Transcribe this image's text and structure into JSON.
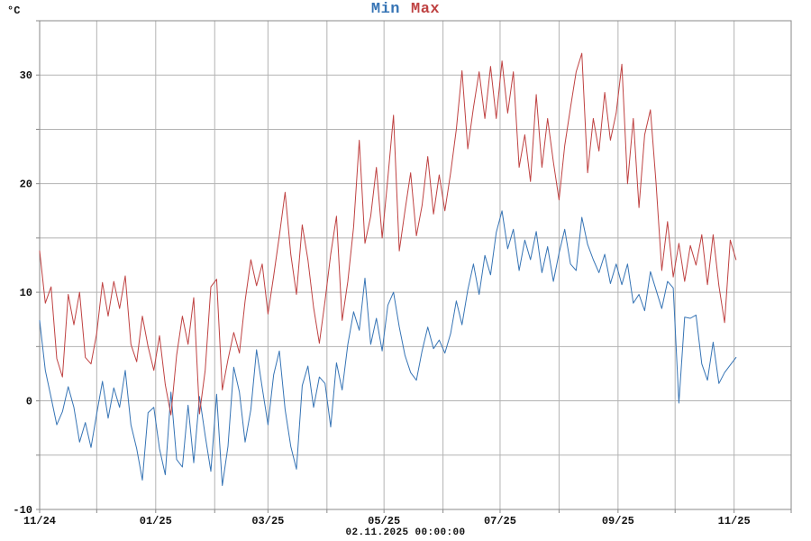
{
  "unit_label": "°C",
  "legend": {
    "min_label": "Min",
    "max_label": "Max"
  },
  "caption": "02.11.2025 00:00:00",
  "colors": {
    "min": "#3674b5",
    "max": "#bf4242",
    "grid": "#b3b3b3",
    "frame": "#8a8a8a",
    "text": "#111111"
  },
  "chart_data": {
    "type": "line",
    "title": "Min Max",
    "ylabel": "°C",
    "xlabel": "",
    "grid": true,
    "legend_position": "top-center",
    "x_unit": "days_from_2024-11-01",
    "x_step_days": 3,
    "x_axis": {
      "range_days": [
        0,
        395
      ],
      "month_gridline_days": [
        30,
        61,
        92,
        120,
        151,
        181,
        212,
        242,
        273,
        304,
        334,
        365
      ],
      "tick_labels": [
        {
          "day": 0,
          "label": "11/24"
        },
        {
          "day": 61,
          "label": "01/25"
        },
        {
          "day": 120,
          "label": "03/25"
        },
        {
          "day": 181,
          "label": "05/25"
        },
        {
          "day": 242,
          "label": "07/25"
        },
        {
          "day": 304,
          "label": "09/25"
        },
        {
          "day": 365,
          "label": "11/25"
        }
      ]
    },
    "y_axis": {
      "range": [
        -10,
        35
      ],
      "gridlines": [
        -5,
        0,
        5,
        10,
        15,
        20,
        25,
        30
      ],
      "tick_labels": [
        {
          "value": -10,
          "label": "-10"
        },
        {
          "value": 0,
          "label": "0"
        },
        {
          "value": 10,
          "label": "10"
        },
        {
          "value": 20,
          "label": "20"
        },
        {
          "value": 30,
          "label": "30"
        }
      ]
    },
    "series": [
      {
        "name": "Min",
        "color": "#3674b5",
        "values": [
          7.4,
          2.8,
          0.3,
          -2.2,
          -1.0,
          1.3,
          -0.6,
          -3.8,
          -2.0,
          -4.3,
          -1.2,
          1.8,
          -1.6,
          1.2,
          -0.6,
          2.8,
          -2.2,
          -4.4,
          -7.3,
          -1.1,
          -0.6,
          -4.4,
          -6.8,
          0.8,
          -5.4,
          -6.1,
          -0.4,
          -5.7,
          0.4,
          -3.2,
          -6.5,
          0.6,
          -7.8,
          -4.2,
          3.1,
          0.8,
          -3.8,
          -0.8,
          4.7,
          1.2,
          -2.2,
          2.4,
          4.6,
          -0.8,
          -4.2,
          -6.3,
          1.4,
          3.2,
          -0.6,
          2.2,
          1.6,
          -2.4,
          3.5,
          1.0,
          5.2,
          8.2,
          6.5,
          11.3,
          5.2,
          7.6,
          4.6,
          8.8,
          10.0,
          6.8,
          4.2,
          2.6,
          1.9,
          4.6,
          6.8,
          4.8,
          5.6,
          4.4,
          6.2,
          9.2,
          7.0,
          10.2,
          12.6,
          9.8,
          13.4,
          11.6,
          15.5,
          17.5,
          14.0,
          15.8,
          12.0,
          14.8,
          13.0,
          15.6,
          11.8,
          14.2,
          11.0,
          13.6,
          15.8,
          12.6,
          12.0,
          16.9,
          14.4,
          13.0,
          11.8,
          13.5,
          10.8,
          12.6,
          10.7,
          12.6,
          9.0,
          9.8,
          8.3,
          11.9,
          10.2,
          8.5,
          11.0,
          10.4,
          -0.2,
          7.7,
          7.6,
          7.9,
          3.4,
          1.9,
          5.4,
          1.6,
          2.6,
          3.3,
          4.0
        ]
      },
      {
        "name": "Max",
        "color": "#bf4242",
        "values": [
          13.8,
          9.0,
          10.5,
          3.9,
          2.2,
          9.8,
          7.0,
          10.0,
          4.0,
          3.4,
          6.2,
          10.9,
          7.8,
          11.0,
          8.5,
          11.5,
          5.2,
          3.6,
          7.8,
          5.0,
          2.8,
          6.0,
          1.5,
          -1.3,
          4.2,
          7.8,
          5.2,
          9.5,
          -1.2,
          2.8,
          10.5,
          11.2,
          1.0,
          3.8,
          6.3,
          4.4,
          9.2,
          13.0,
          10.6,
          12.6,
          8.0,
          11.5,
          15.2,
          19.2,
          13.5,
          9.8,
          16.2,
          13.0,
          8.6,
          5.3,
          9.2,
          13.5,
          17.0,
          7.4,
          11.0,
          16.0,
          24.0,
          14.5,
          17.0,
          21.5,
          15.0,
          20.5,
          26.3,
          13.8,
          17.5,
          21.0,
          15.2,
          18.0,
          22.5,
          17.2,
          20.8,
          17.5,
          21.0,
          25.0,
          30.4,
          23.2,
          27.0,
          30.3,
          26.0,
          30.8,
          26.0,
          31.3,
          26.5,
          30.3,
          21.5,
          24.5,
          20.2,
          28.2,
          21.5,
          26.0,
          22.0,
          18.5,
          23.5,
          27.0,
          30.3,
          32.0,
          21.0,
          26.0,
          23.0,
          28.4,
          24.0,
          26.5,
          31.0,
          20.0,
          26.0,
          17.8,
          24.5,
          26.8,
          20.0,
          12.0,
          16.5,
          11.4,
          14.5,
          11.0,
          14.3,
          12.5,
          15.3,
          10.7,
          15.3,
          10.6,
          7.2,
          14.8,
          13.0
        ]
      }
    ]
  }
}
